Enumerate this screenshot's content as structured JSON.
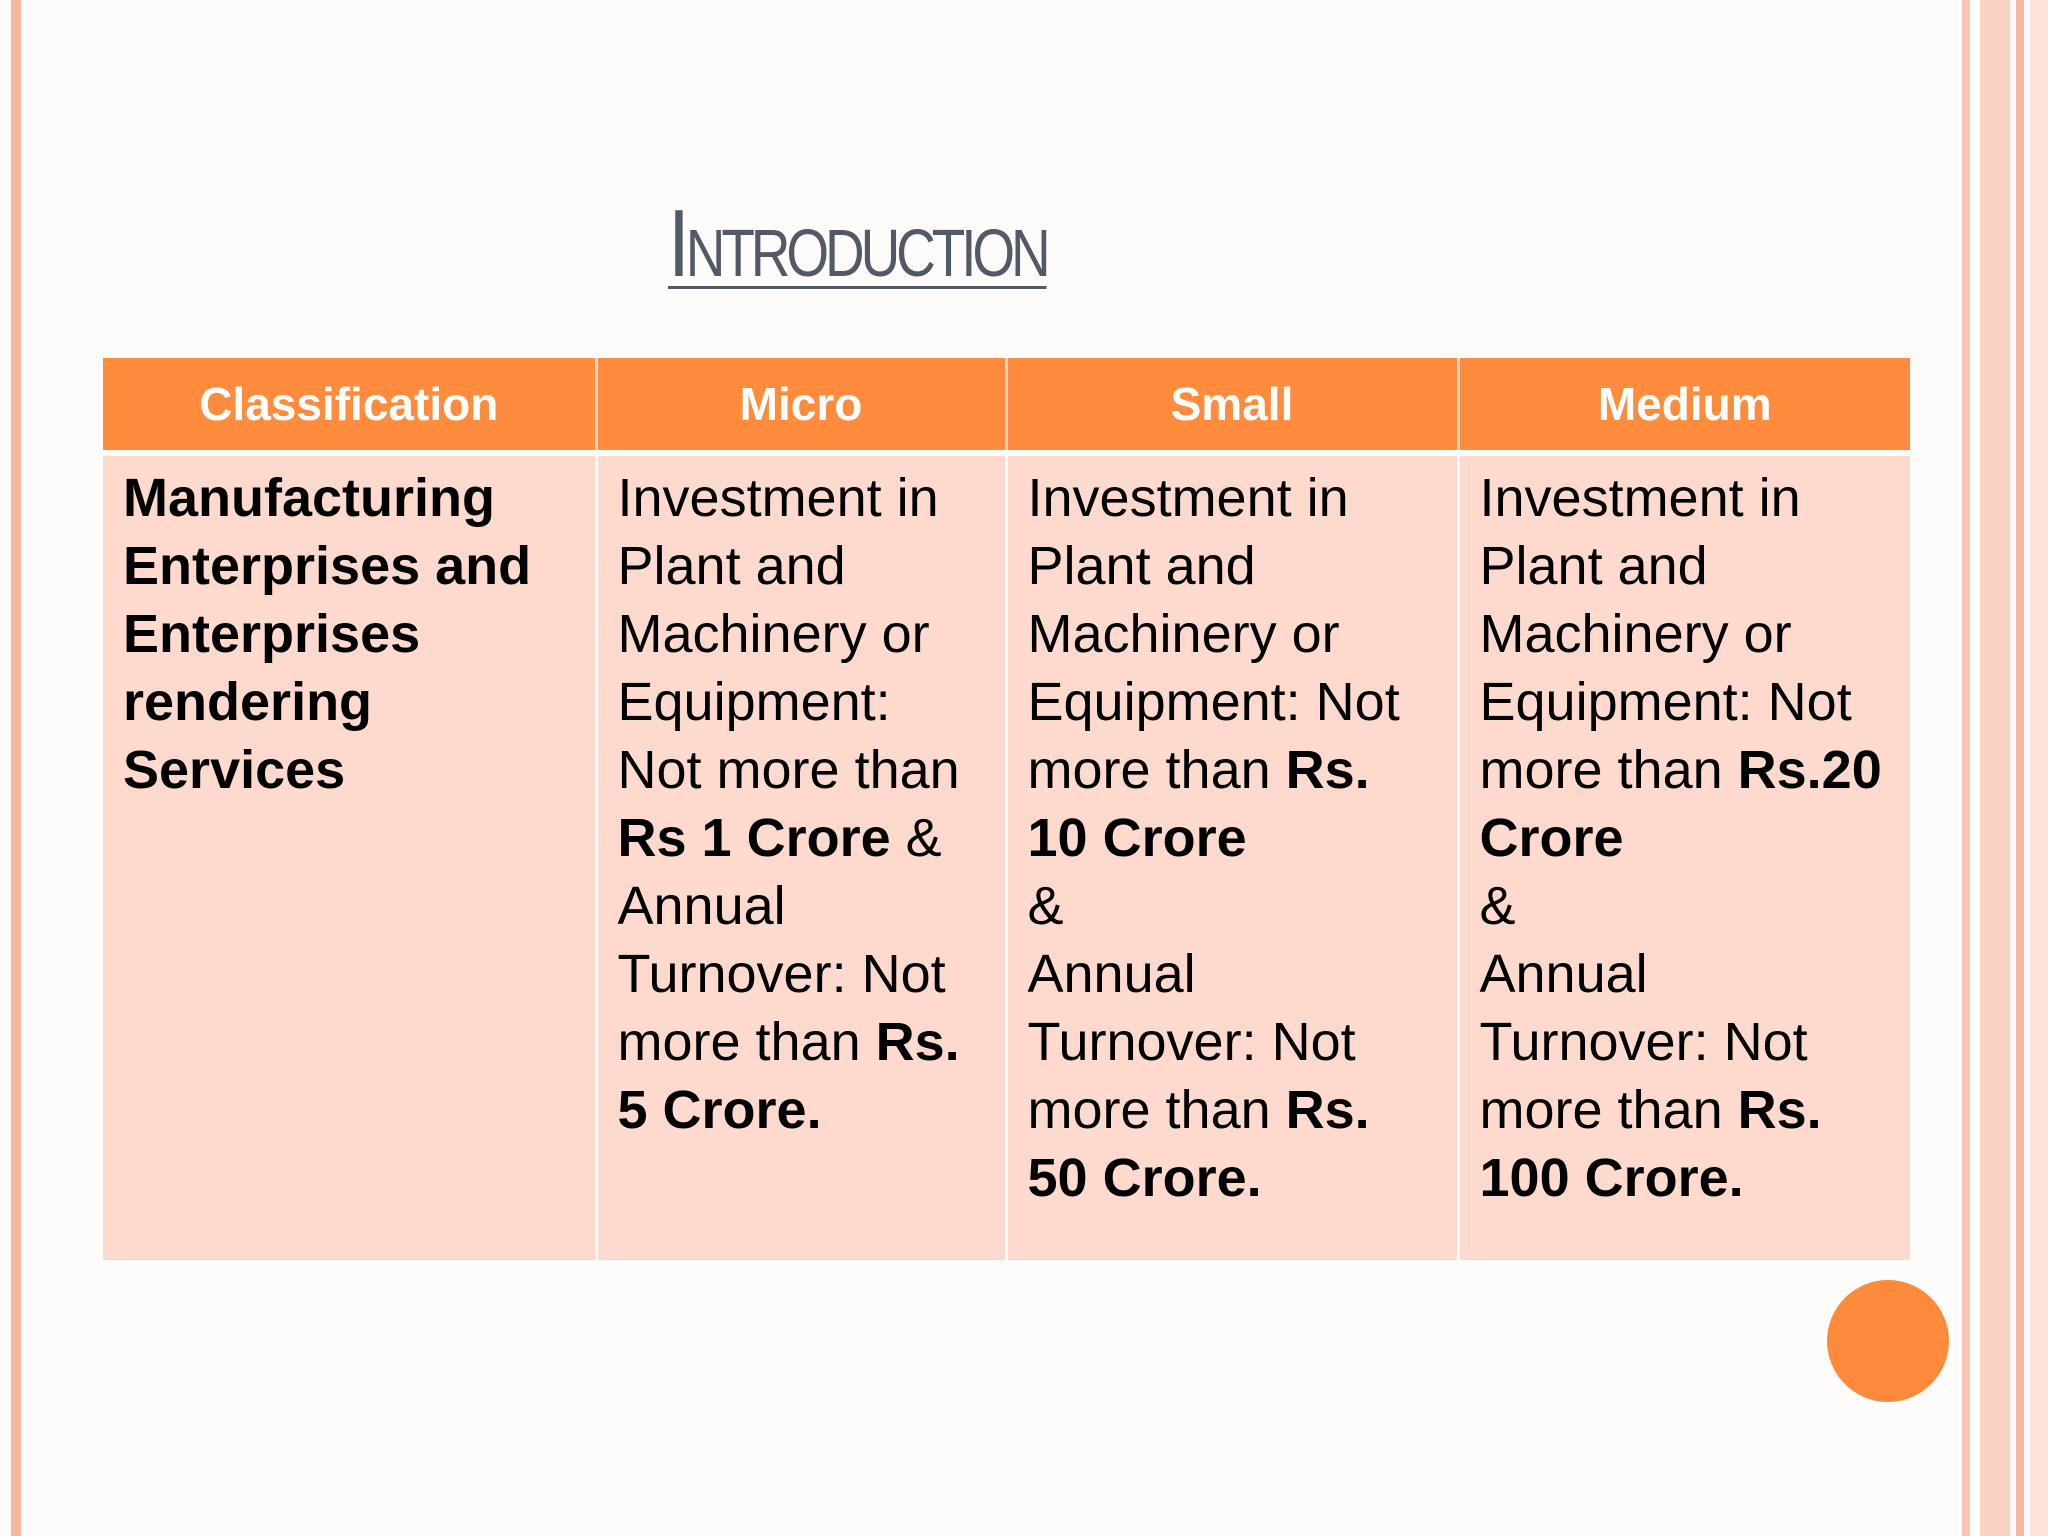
{
  "slide": {
    "title": "Introduction",
    "table": {
      "headers": [
        "Classification",
        "Micro",
        "Small",
        "Medium"
      ],
      "row": {
        "classification": "Manufacturing Enterprises and Enterprises rendering Services",
        "micro": {
          "investment_text": "Investment in Plant and Machinery or Equipment: Not more than ",
          "investment_limit": "Rs 1 Crore",
          "connector": " & ",
          "turnover_text": "Annual Turnover: Not more than ",
          "turnover_limit": "Rs. 5 Crore."
        },
        "small": {
          "investment_text": "Investment in Plant and Machinery or Equipment: Not more than ",
          "investment_limit": "Rs. 10 Crore",
          "connector": "&",
          "turnover_text": "Annual Turnover: Not more than ",
          "turnover_limit": "Rs. 50 Crore."
        },
        "medium": {
          "investment_text": "Investment in Plant and Machinery or Equipment: Not more than ",
          "investment_limit": "Rs.20 Crore",
          "connector": "&",
          "turnover_text": "Annual Turnover: Not more than ",
          "turnover_limit": "Rs. 100 Crore."
        }
      }
    }
  }
}
